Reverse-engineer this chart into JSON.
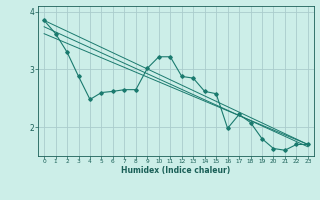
{
  "bg_color": "#cceee8",
  "line_color": "#1a7a6e",
  "grid_color": "#aacccc",
  "xlabel": "Humidex (Indice chaleur)",
  "xlabel_color": "#1a5f57",
  "tick_color": "#1a5f57",
  "ylim": [
    1.5,
    4.1
  ],
  "xlim": [
    -0.5,
    23.5
  ],
  "yticks": [
    2,
    3,
    4
  ],
  "xticks": [
    0,
    1,
    2,
    3,
    4,
    5,
    6,
    7,
    8,
    9,
    10,
    11,
    12,
    13,
    14,
    15,
    16,
    17,
    18,
    19,
    20,
    21,
    22,
    23
  ],
  "series_main": {
    "x": [
      0,
      1,
      2,
      3,
      4,
      5,
      6,
      7,
      8,
      9,
      10,
      11,
      12,
      13,
      14,
      15,
      16,
      17,
      18,
      19,
      20,
      21,
      22,
      23
    ],
    "y": [
      3.85,
      3.62,
      3.3,
      2.88,
      2.48,
      2.6,
      2.62,
      2.65,
      2.65,
      3.02,
      3.22,
      3.22,
      2.88,
      2.85,
      2.62,
      2.58,
      1.98,
      2.22,
      2.08,
      1.8,
      1.63,
      1.6,
      1.7,
      1.7
    ]
  },
  "series_lines": [
    {
      "x": [
        0,
        23
      ],
      "y": [
        3.85,
        1.7
      ]
    },
    {
      "x": [
        0,
        23
      ],
      "y": [
        3.62,
        1.7
      ]
    },
    {
      "x": [
        0,
        23
      ],
      "y": [
        3.74,
        1.66
      ]
    }
  ]
}
